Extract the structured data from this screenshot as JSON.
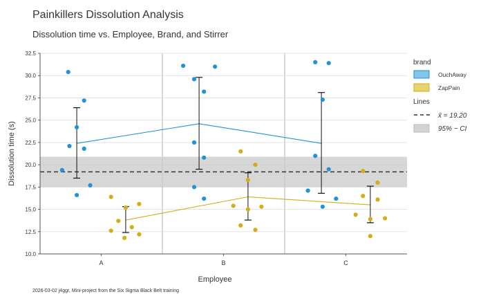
{
  "chart_data": {
    "type": "scatter",
    "title": "Painkillers Dissolution Analysis",
    "subtitle": "Dissolution time vs. Employee, Brand, and Stirrer",
    "xlabel": "Employee",
    "ylabel": "Dissolution time (s)",
    "categories": [
      "A",
      "B",
      "C"
    ],
    "ylim": [
      10.0,
      32.5
    ],
    "yticks": [
      "10.0",
      "12.5",
      "15.0",
      "17.5",
      "20.0",
      "22.5",
      "25.0",
      "27.5",
      "30.0",
      "32.5"
    ],
    "grid": true,
    "legend_position": "right",
    "legend": {
      "brand_title": "brand",
      "lines_title": "Lines",
      "mean_label": "x̄ = 19.20",
      "ci_label": "95% − CI"
    },
    "overall_mean": 19.2,
    "ci_band": [
      17.5,
      20.9
    ],
    "series": [
      {
        "name": "OuchAway",
        "color": "#1f93d3",
        "line_color": "#1f93d3",
        "means": [
          22.4,
          24.6,
          22.4
        ],
        "error": [
          [
            18.5,
            26.4
          ],
          [
            19.5,
            29.8
          ],
          [
            16.8,
            28.1
          ]
        ],
        "points": [
          {
            "cat": 0,
            "dx": -0.32,
            "y": 19.4
          },
          {
            "cat": 0,
            "dx": -0.27,
            "y": 30.4
          },
          {
            "cat": 0,
            "dx": -0.26,
            "y": 22.1
          },
          {
            "cat": 0,
            "dx": -0.2,
            "y": 24.2
          },
          {
            "cat": 0,
            "dx": -0.2,
            "y": 16.6
          },
          {
            "cat": 0,
            "dx": -0.14,
            "y": 27.2
          },
          {
            "cat": 0,
            "dx": -0.14,
            "y": 21.8
          },
          {
            "cat": 0,
            "dx": -0.09,
            "y": 17.7
          },
          {
            "cat": 1,
            "dx": -0.33,
            "y": 31.1
          },
          {
            "cat": 1,
            "dx": -0.24,
            "y": 29.6
          },
          {
            "cat": 1,
            "dx": -0.24,
            "y": 22.5
          },
          {
            "cat": 1,
            "dx": -0.24,
            "y": 17.5
          },
          {
            "cat": 1,
            "dx": -0.16,
            "y": 28.2
          },
          {
            "cat": 1,
            "dx": -0.16,
            "y": 20.8
          },
          {
            "cat": 1,
            "dx": -0.16,
            "y": 16.2
          },
          {
            "cat": 1,
            "dx": -0.07,
            "y": 31.0
          },
          {
            "cat": 2,
            "dx": -0.31,
            "y": 17.1
          },
          {
            "cat": 2,
            "dx": -0.25,
            "y": 31.5
          },
          {
            "cat": 2,
            "dx": -0.25,
            "y": 21.0
          },
          {
            "cat": 2,
            "dx": -0.19,
            "y": 27.3
          },
          {
            "cat": 2,
            "dx": -0.19,
            "y": 15.3
          },
          {
            "cat": 2,
            "dx": -0.14,
            "y": 31.4
          },
          {
            "cat": 2,
            "dx": -0.14,
            "y": 19.5
          },
          {
            "cat": 2,
            "dx": -0.08,
            "y": 16.2
          }
        ]
      },
      {
        "name": "ZapPain",
        "color": "#d4ad17",
        "line_color": "#d4ad17",
        "means": [
          13.8,
          16.4,
          15.5
        ],
        "error": [
          [
            12.4,
            15.3
          ],
          [
            13.8,
            19.1
          ],
          [
            13.5,
            17.6
          ]
        ],
        "points": [
          {
            "cat": 0,
            "dx": 0.08,
            "y": 16.4
          },
          {
            "cat": 0,
            "dx": 0.08,
            "y": 12.6
          },
          {
            "cat": 0,
            "dx": 0.14,
            "y": 13.7
          },
          {
            "cat": 0,
            "dx": 0.19,
            "y": 11.8
          },
          {
            "cat": 0,
            "dx": 0.2,
            "y": 15.2
          },
          {
            "cat": 0,
            "dx": 0.25,
            "y": 13.0
          },
          {
            "cat": 0,
            "dx": 0.31,
            "y": 15.6
          },
          {
            "cat": 0,
            "dx": 0.31,
            "y": 12.2
          },
          {
            "cat": 1,
            "dx": 0.08,
            "y": 15.4
          },
          {
            "cat": 1,
            "dx": 0.14,
            "y": 21.5
          },
          {
            "cat": 1,
            "dx": 0.14,
            "y": 13.2
          },
          {
            "cat": 1,
            "dx": 0.2,
            "y": 18.3
          },
          {
            "cat": 1,
            "dx": 0.2,
            "y": 15.0
          },
          {
            "cat": 1,
            "dx": 0.26,
            "y": 20.0
          },
          {
            "cat": 1,
            "dx": 0.26,
            "y": 12.7
          },
          {
            "cat": 1,
            "dx": 0.31,
            "y": 15.3
          },
          {
            "cat": 2,
            "dx": 0.08,
            "y": 14.4
          },
          {
            "cat": 2,
            "dx": 0.14,
            "y": 19.3
          },
          {
            "cat": 2,
            "dx": 0.14,
            "y": 16.5
          },
          {
            "cat": 2,
            "dx": 0.2,
            "y": 13.9
          },
          {
            "cat": 2,
            "dx": 0.2,
            "y": 12.0
          },
          {
            "cat": 2,
            "dx": 0.26,
            "y": 18.0
          },
          {
            "cat": 2,
            "dx": 0.26,
            "y": 16.1
          },
          {
            "cat": 2,
            "dx": 0.32,
            "y": 14.0
          }
        ]
      }
    ],
    "footnote": "2026-03-02 j4ggr, Mini-project from the Six Sigma Black Belt training"
  }
}
